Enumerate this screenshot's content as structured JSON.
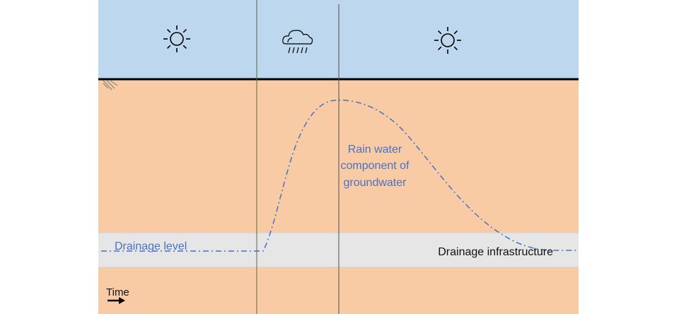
{
  "colors": {
    "sky": "#bdd7ee",
    "soil": "#f8cba5",
    "drainage_band": "#e6e6e6",
    "curve": "#4472c4",
    "ground_line": "#000000",
    "divider": "#5b6b3c"
  },
  "icons": [
    "sun-icon",
    "rain-cloud-icon",
    "sun-icon"
  ],
  "labels": {
    "drainage_level": "Drainage level",
    "drainage_infrastructure": "Drainage infrastructure",
    "rain_component_line1": "Rain water",
    "rain_component_line2": "component of",
    "rain_component_line3": "groundwater",
    "time": "Time"
  }
}
